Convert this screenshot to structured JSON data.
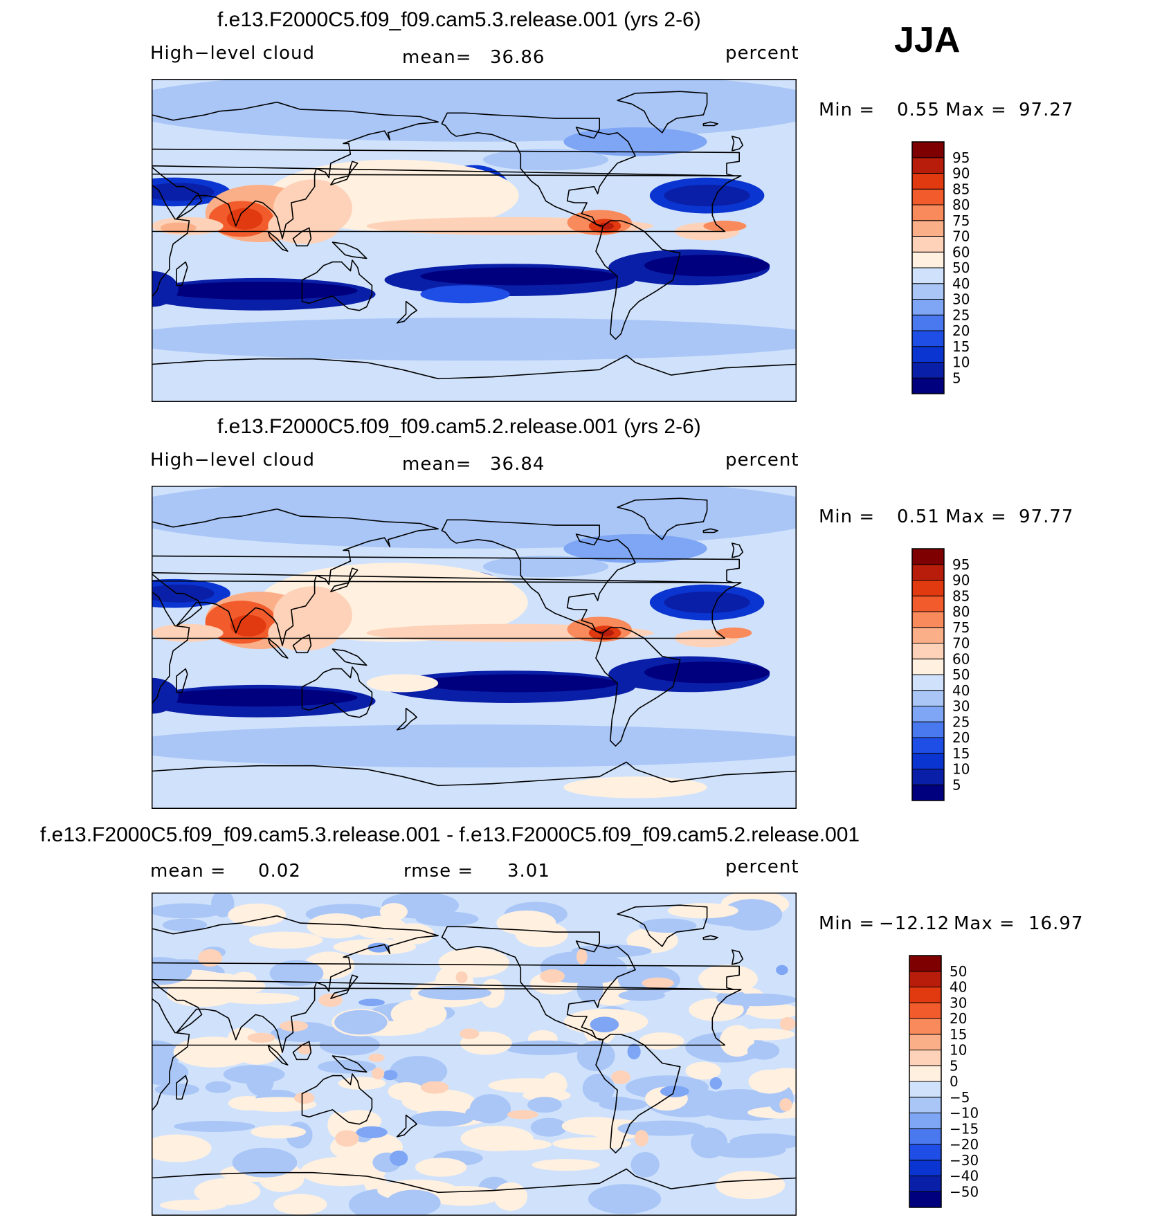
{
  "season": "JJA",
  "colors": {
    "seq": [
      "#00007f",
      "#0a1fa8",
      "#0a35d0",
      "#1e4ee6",
      "#4a78ee",
      "#7ea6f4",
      "#a9c6f7",
      "#d0e2fb",
      "#fff0e0",
      "#fdd2b8",
      "#fbaf88",
      "#f88a5c",
      "#f25c2c",
      "#e23a10",
      "#b81c0a",
      "#7f0000"
    ],
    "coast": "#000000"
  },
  "chart_data": [
    {
      "type": "heatmap",
      "title": "f.e13.F2000C5.f09_f09.cam5.3.release.001 (yrs 2-6)",
      "variable": "High−level cloud",
      "mean_label": "mean=",
      "mean": "36.86",
      "units": "percent",
      "min_label": "Min =",
      "min": "0.55",
      "max_label": "Max =",
      "max": "97.27",
      "levels": [
        "5",
        "10",
        "15",
        "20",
        "25",
        "30",
        "40",
        "50",
        "60",
        "70",
        "75",
        "80",
        "85",
        "90",
        "95"
      ]
    },
    {
      "type": "heatmap",
      "title": "f.e13.F2000C5.f09_f09.cam5.2.release.001 (yrs 2-6)",
      "variable": "High−level cloud",
      "mean_label": "mean=",
      "mean": "36.84",
      "units": "percent",
      "min_label": "Min =",
      "min": "0.51",
      "max_label": "Max =",
      "max": "97.77",
      "levels": [
        "5",
        "10",
        "15",
        "20",
        "25",
        "30",
        "40",
        "50",
        "60",
        "70",
        "75",
        "80",
        "85",
        "90",
        "95"
      ]
    },
    {
      "type": "heatmap",
      "title": "f.e13.F2000C5.f09_f09.cam5.3.release.001 - f.e13.F2000C5.f09_f09.cam5.2.release.001",
      "mean_label": "mean =",
      "mean": "0.02",
      "rmse_label": "rmse =",
      "rmse": "3.01",
      "units": "percent",
      "min_label": "Min =",
      "min": "−12.12",
      "max_label": "Max =",
      "max": "16.97",
      "levels": [
        "−50",
        "−40",
        "−30",
        "−20",
        "−15",
        "−10",
        "−5",
        "0",
        "5",
        "10",
        "15",
        "20",
        "30",
        "40",
        "50"
      ]
    }
  ]
}
